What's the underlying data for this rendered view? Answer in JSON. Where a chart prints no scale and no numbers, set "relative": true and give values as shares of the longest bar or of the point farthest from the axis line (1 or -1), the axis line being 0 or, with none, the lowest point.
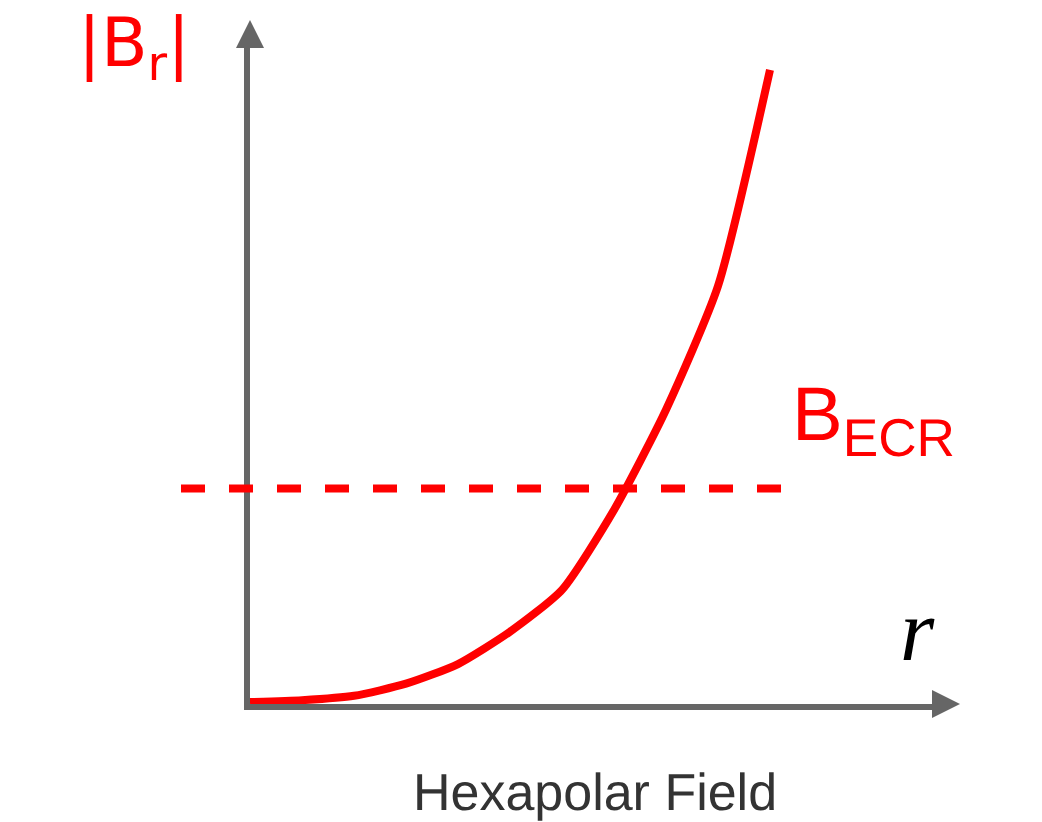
{
  "chart_data": {
    "type": "line",
    "title": "Hexapolar Field",
    "xlabel": "r",
    "ylabel": "|B$_{r}$|",
    "relative": true,
    "marker": "none",
    "line_style": "solid",
    "categories": [
      null,
      null,
      null,
      null,
      null,
      null,
      null,
      null,
      null,
      null,
      null
    ],
    "series": [
      {
        "color": "#ff0000",
        "values": [
          0.003,
          0.006,
          0.013,
          0.032,
          0.063,
          0.114,
          0.18,
          0.306,
          0.464,
          0.659,
          1
        ]
      }
    ],
    "ref_lines": [
      {
        "axis": "y",
        "value": 0.34,
        "label": "B$_{ECR}$",
        "color": "#ff0000",
        "line_style": "dashed"
      }
    ]
  }
}
